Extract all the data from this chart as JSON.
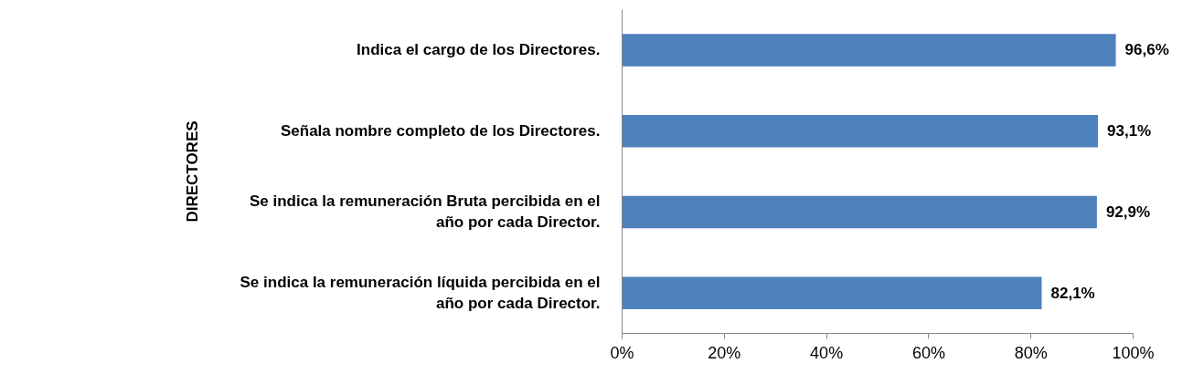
{
  "chart_data": {
    "type": "bar",
    "orientation": "horizontal",
    "ylabel": "DIRECTORES",
    "categories": [
      "Indica el cargo de los Directores.",
      "Señala nombre completo de los Directores.",
      "Se indica la remuneración Bruta percibida en el año por cada Director.",
      "Se indica la remuneración líquida percibida en el año por cada Director."
    ],
    "values": [
      96.6,
      93.1,
      92.9,
      82.1
    ],
    "value_labels": [
      "96,6%",
      "93,1%",
      "92,9%",
      "82,1%"
    ],
    "color": "#4f81bd",
    "xlim": [
      0,
      100
    ],
    "xticks": [
      {
        "value": 0,
        "label": "0%"
      },
      {
        "value": 20,
        "label": "20%"
      },
      {
        "value": 40,
        "label": "40%"
      },
      {
        "value": 60,
        "label": "60%"
      },
      {
        "value": 80,
        "label": "80%"
      },
      {
        "value": 100,
        "label": "100%"
      }
    ],
    "grid": false
  }
}
